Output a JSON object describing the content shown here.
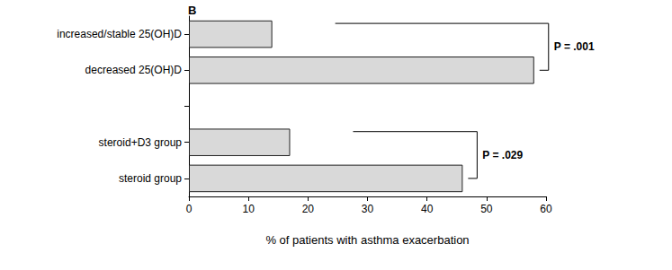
{
  "chart_data": {
    "type": "bar",
    "orientation": "horizontal",
    "title": "B",
    "categories": [
      "increased/stable 25(OH)D",
      "decreased 25(OH)D",
      null,
      "steroid+D3 group",
      "steroid group"
    ],
    "values": [
      14,
      58,
      null,
      17,
      46
    ],
    "color": "#d9d9d9",
    "xlabel": "% of patients with asthma exacerbation",
    "xlim": [
      0,
      60
    ],
    "xticks": [
      0,
      10,
      20,
      30,
      40,
      50,
      60
    ],
    "grid": false,
    "annotations": [
      {
        "text": "P = .001",
        "between": [
          "increased/stable 25(OH)D",
          "decreased 25(OH)D"
        ]
      },
      {
        "text": "P = .029",
        "between": [
          "steroid+D3 group",
          "steroid group"
        ]
      }
    ]
  }
}
